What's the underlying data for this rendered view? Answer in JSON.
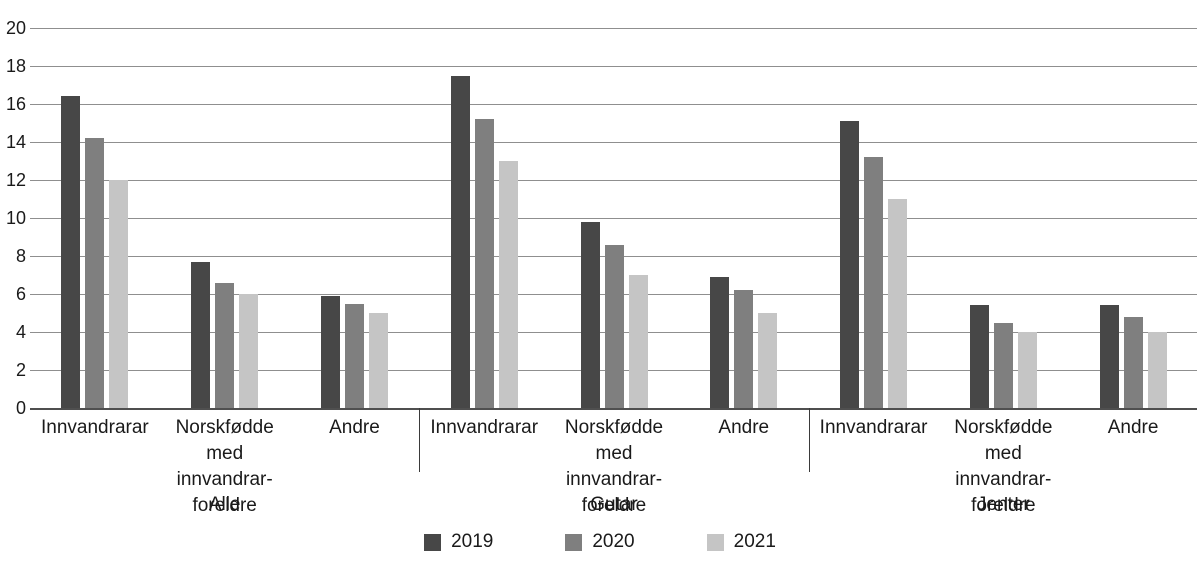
{
  "chart_data": {
    "type": "bar",
    "title": "",
    "xlabel": "",
    "ylabel": "",
    "ylim": [
      0,
      20
    ],
    "yticks": [
      0,
      2,
      4,
      6,
      8,
      10,
      12,
      14,
      16,
      18,
      20
    ],
    "grid": true,
    "legend_position": "bottom",
    "colors": {
      "gridline": "#8f8f8f",
      "axis_line": "#4f4f4f",
      "text": "#1a1a1a",
      "separator": "#3a3a3a"
    },
    "series": [
      {
        "name": "2019",
        "color": "#474747"
      },
      {
        "name": "2020",
        "color": "#7f7f7f"
      },
      {
        "name": "2021",
        "color": "#c5c5c5"
      }
    ],
    "groups": [
      {
        "label": "Alle",
        "categories": [
          {
            "label": "Innvandrarar",
            "values": [
              16.4,
              14.2,
              12.0
            ]
          },
          {
            "label": "Norskfødde\nmed innvandrar-\nforeldre",
            "values": [
              7.7,
              6.6,
              6.0
            ]
          },
          {
            "label": "Andre",
            "values": [
              5.9,
              5.5,
              5.0
            ]
          }
        ]
      },
      {
        "label": "Gutar",
        "categories": [
          {
            "label": "Innvandrarar",
            "values": [
              17.5,
              15.2,
              13.0
            ]
          },
          {
            "label": "Norskfødde\nmed innvandrar-\nforeldre",
            "values": [
              9.8,
              8.6,
              7.0
            ]
          },
          {
            "label": "Andre",
            "values": [
              6.9,
              6.2,
              5.0
            ]
          }
        ]
      },
      {
        "label": "Jenter",
        "categories": [
          {
            "label": "Innvandrarar",
            "values": [
              15.1,
              13.2,
              11.0
            ]
          },
          {
            "label": "Norskfødde\nmed innvandrar-\nforeldre",
            "values": [
              5.4,
              4.5,
              4.0
            ]
          },
          {
            "label": "Andre",
            "values": [
              5.4,
              4.8,
              4.0
            ]
          }
        ]
      }
    ]
  }
}
